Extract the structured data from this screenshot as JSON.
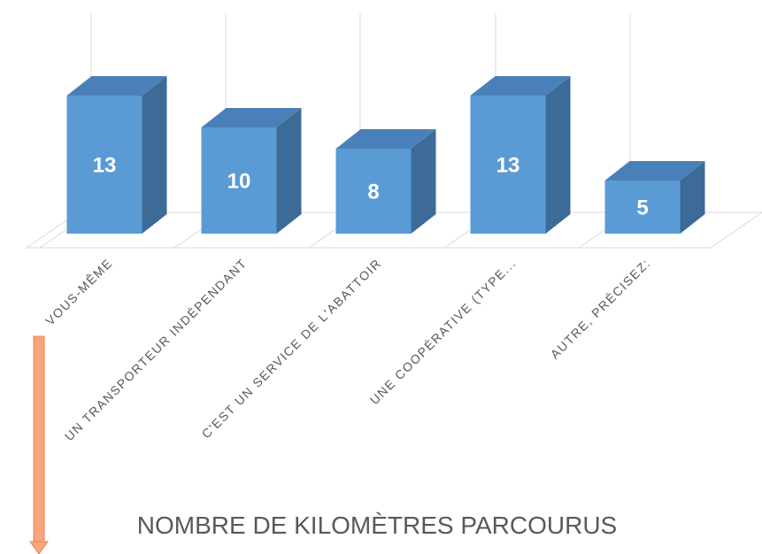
{
  "chart_data": {
    "type": "bar3d",
    "title": "NOMBRE DE KILOMÈTRES PARCOURUS",
    "categories": [
      "VOUS-MÊME",
      "UN TRANSPORTEUR INDÉPENDANT",
      "C'EST UN SERVICE DE L'ABATTOIR",
      "UNE COOPÉRATIVE (TYPE...",
      "AUTRE, PRÉCISEZ:"
    ],
    "values": [
      13,
      10,
      8,
      13,
      5
    ],
    "color": "#5b9bd5"
  }
}
